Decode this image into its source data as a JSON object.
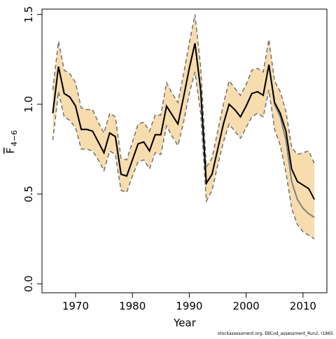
{
  "chart_data": {
    "type": "line",
    "xlabel": "Year",
    "ylabel": "F",
    "ylabel_subscript": "4−6",
    "footnote": "stockassessment.org, EBCod_assessment_Run2, r1865",
    "x": [
      1966,
      1967,
      1968,
      1969,
      1970,
      1971,
      1972,
      1973,
      1974,
      1975,
      1976,
      1977,
      1978,
      1979,
      1980,
      1981,
      1982,
      1983,
      1984,
      1985,
      1986,
      1987,
      1988,
      1989,
      1990,
      1991,
      1992,
      1993,
      1994,
      1995,
      1996,
      1997,
      1998,
      1999,
      2000,
      2001,
      2002,
      2003,
      2004,
      2005,
      2006,
      2007,
      2008,
      2009,
      2010,
      2011,
      2012
    ],
    "series": [
      {
        "color": "#808080",
        "values": [
          0.95,
          1.21,
          1.06,
          1.04,
          0.99,
          0.86,
          0.86,
          0.85,
          0.79,
          0.73,
          0.84,
          0.82,
          0.61,
          0.6,
          0.69,
          0.78,
          0.79,
          0.74,
          0.83,
          0.83,
          0.99,
          0.94,
          0.89,
          1.04,
          1.2,
          1.34,
          1.08,
          0.56,
          0.61,
          0.75,
          0.89,
          1.0,
          0.97,
          0.93,
          0.99,
          1.06,
          1.07,
          1.05,
          1.22,
          1.0,
          0.93,
          0.8,
          0.57,
          0.47,
          0.42,
          0.39,
          0.37
        ]
      },
      {
        "color": "#000000",
        "values": [
          0.95,
          1.21,
          1.06,
          1.04,
          0.99,
          0.86,
          0.86,
          0.85,
          0.79,
          0.73,
          0.84,
          0.82,
          0.61,
          0.6,
          0.69,
          0.78,
          0.79,
          0.74,
          0.83,
          0.83,
          0.99,
          0.94,
          0.89,
          1.04,
          1.2,
          1.34,
          1.08,
          0.56,
          0.61,
          0.75,
          0.89,
          1.0,
          0.97,
          0.93,
          0.99,
          1.06,
          1.07,
          1.05,
          1.22,
          1.01,
          0.95,
          0.85,
          0.64,
          0.57,
          0.55,
          0.53,
          0.47
        ]
      }
    ],
    "band": {
      "fill": "#f7dcae",
      "edge_color": "#707070",
      "upper": [
        1.08,
        1.35,
        1.19,
        1.17,
        1.12,
        0.98,
        0.97,
        0.97,
        0.9,
        0.84,
        0.95,
        0.93,
        0.7,
        0.69,
        0.79,
        0.89,
        0.9,
        0.85,
        0.94,
        0.94,
        1.12,
        1.06,
        1.01,
        1.17,
        1.34,
        1.5,
        1.21,
        0.65,
        0.7,
        0.85,
        1.0,
        1.13,
        1.09,
        1.05,
        1.11,
        1.19,
        1.2,
        1.18,
        1.36,
        1.13,
        1.07,
        0.96,
        0.76,
        0.72,
        0.73,
        0.74,
        0.67
      ],
      "lower": [
        0.8,
        1.07,
        0.93,
        0.91,
        0.87,
        0.75,
        0.75,
        0.74,
        0.69,
        0.63,
        0.74,
        0.72,
        0.52,
        0.51,
        0.6,
        0.68,
        0.69,
        0.64,
        0.73,
        0.72,
        0.88,
        0.82,
        0.77,
        0.9,
        1.06,
        1.18,
        0.95,
        0.46,
        0.52,
        0.66,
        0.79,
        0.89,
        0.85,
        0.81,
        0.87,
        0.93,
        0.95,
        0.93,
        1.08,
        0.86,
        0.77,
        0.62,
        0.42,
        0.33,
        0.29,
        0.27,
        0.25
      ]
    },
    "xlim": [
      1964.1,
      2014.2
    ],
    "ylim": [
      -0.05,
      1.53
    ],
    "xticks": [
      1970,
      1980,
      1990,
      2000,
      2010
    ],
    "yticks": [
      {
        "value": 0,
        "label": "0.0"
      },
      0.5,
      {
        "value": 1,
        "label": "1.0"
      },
      1.5
    ]
  }
}
